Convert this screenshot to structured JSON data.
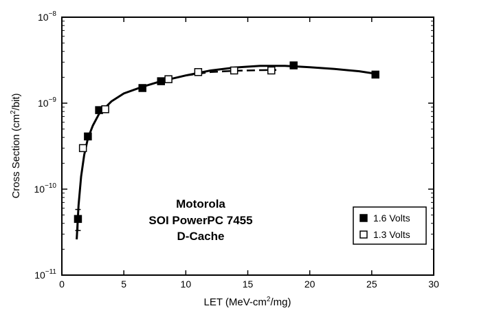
{
  "chart_data": {
    "type": "scatter",
    "title": "",
    "xlabel": "LET (MeV-cm²/mg)",
    "ylabel": "Cross Section (cm²/bit)",
    "xlim": [
      0,
      30
    ],
    "ylim_log10": [
      -11,
      -8
    ],
    "y_scale": "log",
    "x_ticks": [
      {
        "value": 0,
        "label": "0"
      },
      {
        "value": 5,
        "label": "5"
      },
      {
        "value": 10,
        "label": "10"
      },
      {
        "value": 15,
        "label": "15"
      },
      {
        "value": 20,
        "label": "20"
      },
      {
        "value": 25,
        "label": "25"
      },
      {
        "value": 30,
        "label": "30"
      }
    ],
    "y_ticks": [
      {
        "exp": -8,
        "base": "10",
        "sup": "−8"
      },
      {
        "exp": -9,
        "base": "10",
        "sup": "−9"
      },
      {
        "exp": -10,
        "base": "10",
        "sup": "−10"
      },
      {
        "exp": -11,
        "base": "10",
        "sup": "−11"
      }
    ],
    "annotation": [
      "Motorola",
      "SOI PowerPC 7455",
      "D-Cache"
    ],
    "legend_position": "bottom-right",
    "series": [
      {
        "name": "1.6 Volts",
        "marker": "filled-square",
        "color": "#000000",
        "points": [
          {
            "x": 1.3,
            "y": 4.5e-11,
            "err_lo": 3.3e-11,
            "err_hi": 5.8e-11
          },
          {
            "x": 2.1,
            "y": 4.1e-10
          },
          {
            "x": 3.0,
            "y": 8.3e-10
          },
          {
            "x": 6.5,
            "y": 1.5e-09
          },
          {
            "x": 8.0,
            "y": 1.8e-09
          },
          {
            "x": 18.7,
            "y": 2.75e-09
          },
          {
            "x": 25.3,
            "y": 2.15e-09
          }
        ],
        "fit_line": "solid",
        "fit": [
          [
            1.2,
            2.6e-11
          ],
          [
            1.35,
            6.5e-11
          ],
          [
            1.55,
            1.4e-10
          ],
          [
            1.8,
            2.5e-10
          ],
          [
            2.1,
            3.9e-10
          ],
          [
            2.5,
            5.5e-10
          ],
          [
            3.0,
            7.5e-10
          ],
          [
            4.0,
            1.05e-09
          ],
          [
            5.0,
            1.3e-09
          ],
          [
            6.5,
            1.55e-09
          ],
          [
            8.0,
            1.8e-09
          ],
          [
            10.0,
            2.1e-09
          ],
          [
            12.0,
            2.4e-09
          ],
          [
            14.0,
            2.6e-09
          ],
          [
            16.0,
            2.72e-09
          ],
          [
            18.0,
            2.72e-09
          ],
          [
            20.0,
            2.62e-09
          ],
          [
            22.0,
            2.5e-09
          ],
          [
            24.0,
            2.35e-09
          ],
          [
            25.3,
            2.2e-09
          ]
        ]
      },
      {
        "name": "1.3 Volts",
        "marker": "open-square",
        "color": "#000000",
        "points": [
          {
            "x": 1.7,
            "y": 3e-10
          },
          {
            "x": 3.5,
            "y": 8.5e-10
          },
          {
            "x": 8.6,
            "y": 1.9e-09
          },
          {
            "x": 11.0,
            "y": 2.3e-09
          },
          {
            "x": 13.9,
            "y": 2.4e-09
          },
          {
            "x": 16.9,
            "y": 2.4e-09
          }
        ],
        "fit_line": "dashed",
        "fit": [
          [
            8.0,
            1.8e-09
          ],
          [
            10.0,
            2.1e-09
          ],
          [
            12.0,
            2.3e-09
          ],
          [
            14.0,
            2.38e-09
          ],
          [
            16.0,
            2.42e-09
          ],
          [
            17.3,
            2.43e-09
          ]
        ]
      }
    ]
  }
}
